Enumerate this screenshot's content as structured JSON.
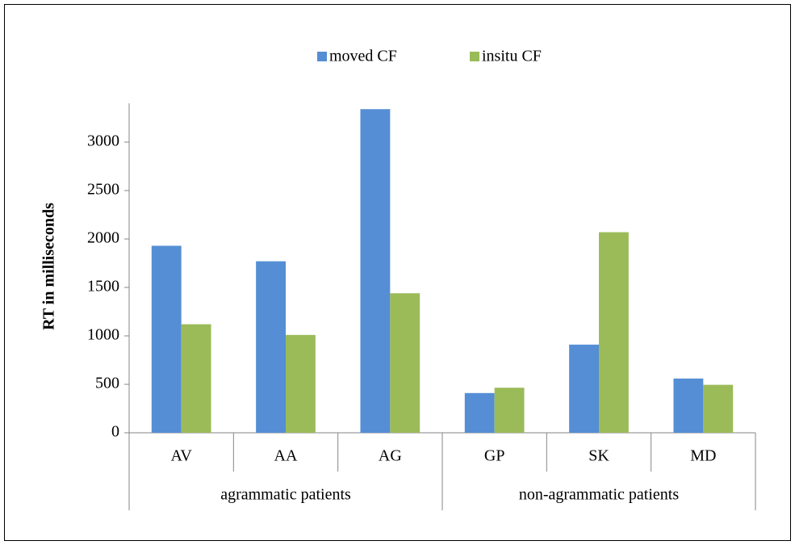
{
  "chart_data": {
    "type": "bar",
    "y_label": "RT in milliseconds",
    "categories": [
      "AV",
      "AA",
      "AG",
      "GP",
      "SK",
      "MD"
    ],
    "groups": [
      "agrammatic patients",
      "non-agrammatic patients"
    ],
    "series": [
      {
        "name": "moved CF",
        "color": "#558ed5",
        "values": [
          1930,
          1770,
          3340,
          410,
          910,
          560
        ]
      },
      {
        "name": "insitu CF",
        "color": "#9bbb59",
        "values": [
          1120,
          1010,
          1440,
          465,
          2070,
          495
        ]
      }
    ],
    "ylim": [
      0,
      3400
    ],
    "yticks": [
      0,
      500,
      1000,
      1500,
      2000,
      2500,
      3000
    ],
    "legend": "top",
    "grid": false
  }
}
